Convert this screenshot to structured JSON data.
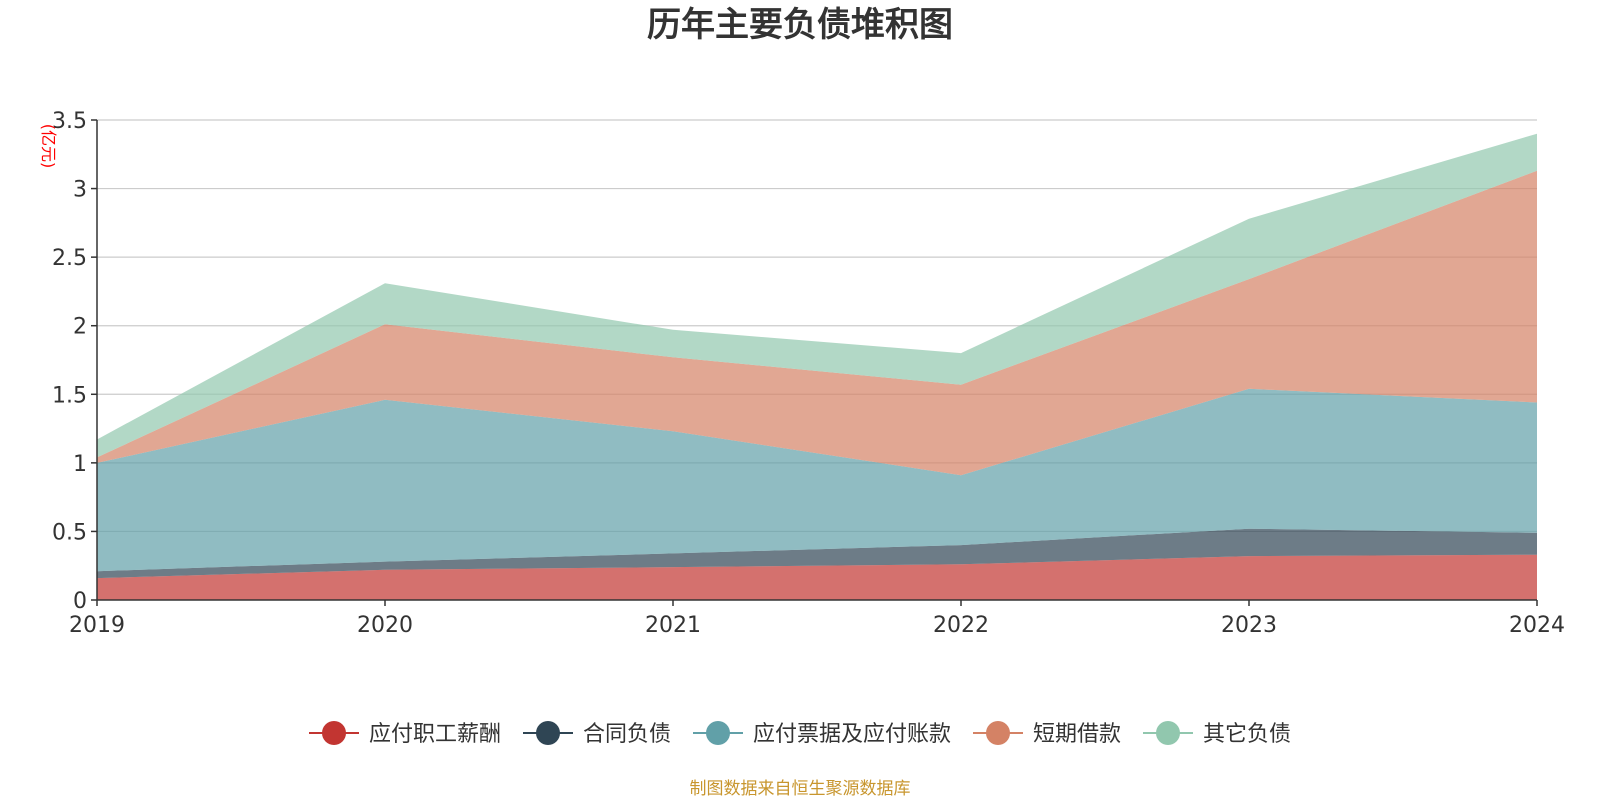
{
  "chart_data": {
    "type": "area",
    "stacked": true,
    "title": "历年主要负债堆积图",
    "ylabel": "(亿元)",
    "xlabel": "",
    "categories": [
      "2019",
      "2020",
      "2021",
      "2022",
      "2023",
      "2024"
    ],
    "ylim": [
      0,
      3.5
    ],
    "yticks": [
      "0",
      "0.5",
      "1",
      "1.5",
      "2",
      "2.5",
      "3",
      "3.5"
    ],
    "series": [
      {
        "name": "应付职工薪酬",
        "color": "#c23531",
        "values": [
          0.16,
          0.22,
          0.24,
          0.26,
          0.32,
          0.33
        ]
      },
      {
        "name": "合同负债",
        "color": "#2f4554",
        "values": [
          0.05,
          0.06,
          0.1,
          0.14,
          0.2,
          0.16
        ]
      },
      {
        "name": "应付票据及应付账款",
        "color": "#61a0a8",
        "values": [
          0.79,
          1.18,
          0.89,
          0.51,
          1.02,
          0.95
        ]
      },
      {
        "name": "短期借款",
        "color": "#d48265",
        "values": [
          0.04,
          0.55,
          0.54,
          0.66,
          0.8,
          1.69
        ]
      },
      {
        "name": "其它负债",
        "color": "#91c7ae",
        "values": [
          0.13,
          0.3,
          0.2,
          0.23,
          0.44,
          0.27
        ]
      }
    ],
    "legend_position": "bottom",
    "grid": true
  },
  "source": "制图数据来自恒生聚源数据库",
  "colors": {
    "unit_label": "#ff0000",
    "source_text": "#c8962e",
    "axis": "#333333",
    "grid": "#cccccc"
  }
}
